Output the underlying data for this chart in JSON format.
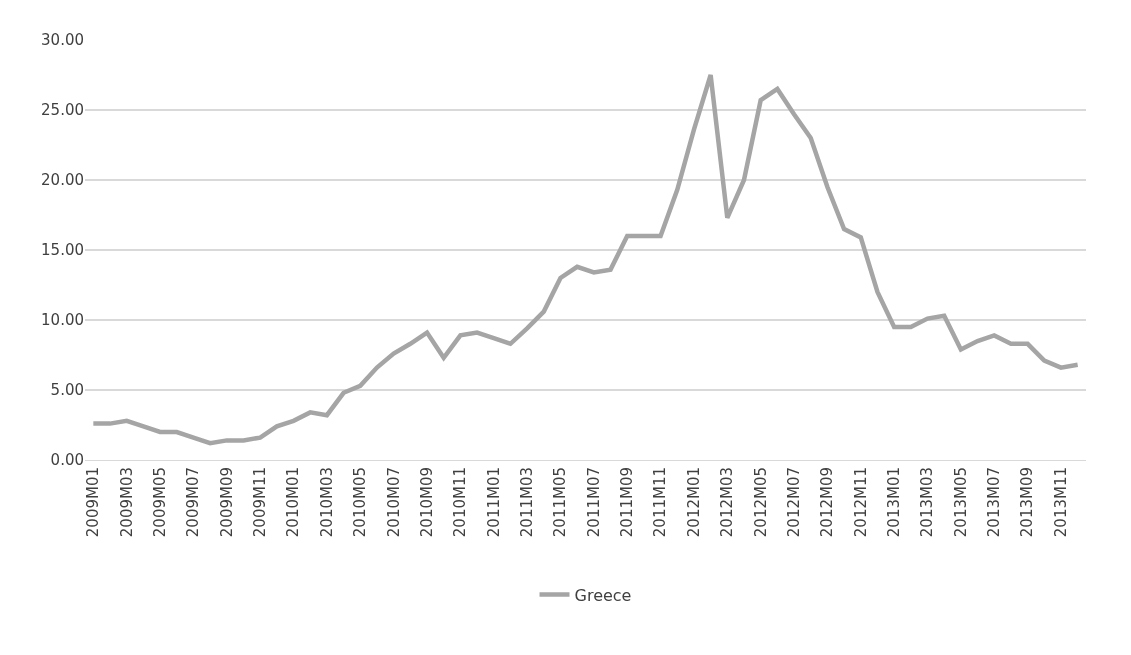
{
  "chart_data": {
    "type": "line",
    "categories": [
      "2009M01",
      null,
      "2009M03",
      null,
      "2009M05",
      null,
      "2009M07",
      null,
      "2009M09",
      null,
      "2009M11",
      null,
      "2010M01",
      null,
      "2010M03",
      null,
      "2010M05",
      null,
      "2010M07",
      null,
      "2010M09",
      null,
      "2010M11",
      null,
      "2011M01",
      null,
      "2011M03",
      null,
      "2011M05",
      null,
      "2011M07",
      null,
      "2011M09",
      null,
      "2011M11",
      null,
      "2012M01",
      null,
      "2012M03",
      null,
      "2012M05",
      null,
      "2012M07",
      null,
      "2012M09",
      null,
      "2012M11",
      null,
      "2013M01",
      null,
      "2013M03",
      null,
      "2013M05",
      null,
      "2013M07",
      null,
      "2013M09",
      null,
      "2013M11",
      null
    ],
    "series": [
      {
        "name": "Greece",
        "color": "#a5a5a5",
        "values": [
          2.6,
          2.6,
          2.8,
          2.4,
          2.0,
          2.0,
          1.6,
          1.2,
          1.4,
          1.4,
          1.6,
          2.4,
          2.8,
          3.4,
          3.2,
          4.8,
          5.3,
          6.6,
          7.6,
          8.3,
          9.1,
          7.3,
          8.9,
          9.1,
          8.7,
          8.3,
          9.4,
          10.6,
          13.0,
          13.8,
          13.4,
          13.6,
          16.0,
          16.0,
          16.0,
          19.3,
          23.6,
          27.5,
          17.3,
          20.0,
          25.7,
          26.5,
          24.7,
          23.0,
          19.5,
          16.5,
          15.9,
          12.0,
          9.5,
          9.5,
          10.1,
          10.3,
          7.9,
          8.5,
          8.9,
          8.3,
          8.3,
          7.1,
          6.6,
          6.8
        ]
      }
    ],
    "ylim": [
      0,
      30
    ],
    "yticks": [
      {
        "value": 0,
        "label": "0.00"
      },
      {
        "value": 5,
        "label": "5.00"
      },
      {
        "value": 10,
        "label": "10.00"
      },
      {
        "value": 15,
        "label": "15.00"
      },
      {
        "value": 20,
        "label": "20.00"
      },
      {
        "value": 25,
        "label": "25.00"
      },
      {
        "value": 30,
        "label": "30.00"
      }
    ],
    "grid": "y",
    "legend": "bottom",
    "marker": "none",
    "line_style": "solid"
  }
}
